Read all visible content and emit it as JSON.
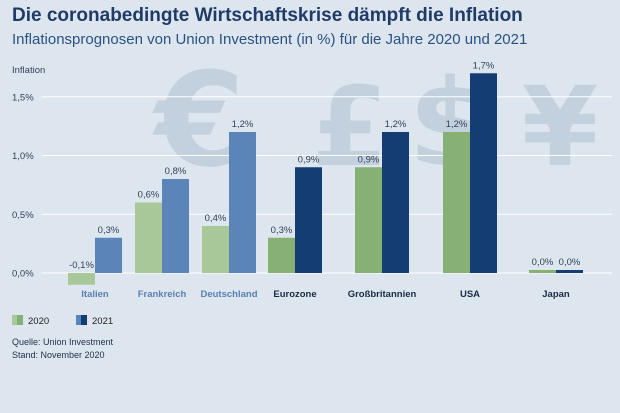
{
  "title": "Die coronabedingte Wirtschaftskrise dämpft die Inflation",
  "subtitle": "Inflationsprognosen von Union Investment (in %) für die Jahre 2020 und 2021",
  "footer": {
    "source": "Quelle: Union Investment",
    "date": "Stand: November 2020"
  },
  "background_symbols": [
    "€",
    "£",
    "$",
    "¥"
  ],
  "colors": {
    "background": "#dde6ee",
    "grid": "#ffffff",
    "axis_text": "#32415a",
    "title": "#1f3b66",
    "subtitle": "#2b5183",
    "muted_2020": "#a9c89a",
    "muted_2021": "#5b85b8",
    "strong_2020": "#87b074",
    "strong_2021": "#143d73",
    "muted_label": "#5b7fb3",
    "strong_label": "#1b2b45"
  },
  "chart_data": {
    "type": "bar",
    "title": "",
    "xlabel": "",
    "ylabel": "Inflation",
    "ylim": [
      -0.1,
      1.75
    ],
    "yticks": [
      0.0,
      0.5,
      1.0,
      1.5
    ],
    "ytick_labels": [
      "0,0%",
      "0,5%",
      "1,0%",
      "1,5%"
    ],
    "grid": true,
    "legend_position": "bottom-left",
    "categories": [
      "Italien",
      "Frankreich",
      "Deutschland",
      "Eurozone",
      "Großbritannien",
      "USA",
      "Japan"
    ],
    "category_style": [
      "muted",
      "muted",
      "muted",
      "strong",
      "strong",
      "strong",
      "strong"
    ],
    "series": [
      {
        "name": "2020",
        "values": [
          -0.1,
          0.6,
          0.4,
          0.3,
          0.9,
          1.2,
          0.0
        ],
        "labels": [
          "-0,1%",
          "0,6%",
          "0,4%",
          "0,3%",
          "0,9%",
          "1,2%",
          "0,0%"
        ]
      },
      {
        "name": "2021",
        "values": [
          0.3,
          0.8,
          1.2,
          0.9,
          1.2,
          1.7,
          0.0
        ],
        "labels": [
          "0,3%",
          "0,8%",
          "1,2%",
          "0,9%",
          "1,2%",
          "1,7%",
          "0,0%"
        ]
      }
    ]
  }
}
